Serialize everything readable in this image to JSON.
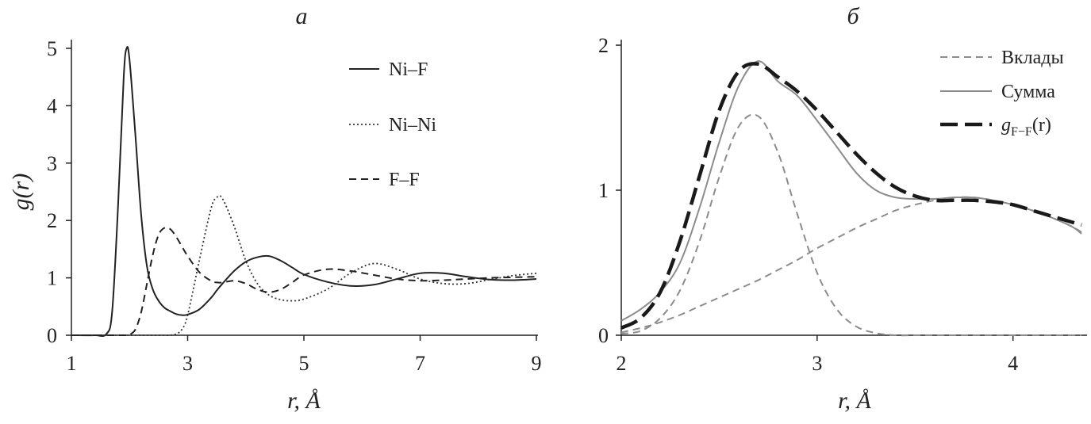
{
  "chart_data": [
    {
      "type": "line",
      "title": "а",
      "x_label": "r, Å",
      "y_label": "g(r)",
      "x": [
        1,
        1.4,
        1.6,
        1.7,
        1.8,
        1.9,
        1.95,
        2.0,
        2.1,
        2.2,
        2.3,
        2.4,
        2.5,
        2.6,
        2.7,
        2.8,
        2.9,
        3.0,
        3.2,
        3.4,
        3.5,
        3.6,
        3.8,
        4.0,
        4.2,
        4.4,
        4.6,
        4.8,
        5.0,
        5.4,
        5.8,
        6.2,
        6.6,
        7.0,
        7.4,
        7.8,
        8.2,
        8.6,
        9.0
      ],
      "series": [
        {
          "name": "Ni–F",
          "color": "#222222",
          "line_style": "solid",
          "values": [
            0,
            0,
            0.02,
            0.4,
            2.2,
            4.5,
            5.0,
            4.8,
            3.5,
            2.1,
            1.2,
            0.8,
            0.6,
            0.48,
            0.42,
            0.37,
            0.35,
            0.36,
            0.45,
            0.65,
            0.78,
            0.9,
            1.12,
            1.28,
            1.36,
            1.38,
            1.3,
            1.18,
            1.06,
            0.93,
            0.86,
            0.88,
            0.98,
            1.08,
            1.08,
            1.02,
            0.97,
            0.96,
            0.98
          ]
        },
        {
          "name": "Ni–Ni",
          "color": "#333333",
          "line_style": "dotted",
          "values": [
            0,
            0,
            0,
            0,
            0,
            0,
            0,
            0,
            0,
            0,
            0,
            0,
            0,
            0,
            0,
            0.02,
            0.1,
            0.35,
            1.3,
            2.2,
            2.4,
            2.38,
            1.9,
            1.3,
            0.9,
            0.7,
            0.62,
            0.6,
            0.63,
            0.8,
            1.08,
            1.25,
            1.15,
            0.98,
            0.9,
            0.9,
            0.97,
            1.04,
            1.08
          ]
        },
        {
          "name": "F–F",
          "color": "#222222",
          "line_style": "dashed",
          "values": [
            0,
            0,
            0,
            0,
            0,
            0,
            0,
            0.01,
            0.1,
            0.4,
            0.9,
            1.4,
            1.75,
            1.87,
            1.85,
            1.72,
            1.55,
            1.38,
            1.1,
            0.95,
            0.92,
            0.92,
            0.95,
            0.9,
            0.8,
            0.75,
            0.8,
            0.92,
            1.05,
            1.15,
            1.12,
            1.05,
            0.98,
            0.95,
            0.96,
            0.98,
            1.0,
            1.01,
            1.02
          ]
        }
      ],
      "xlim": [
        1,
        9
      ],
      "ylim": [
        0,
        5
      ],
      "xticks": [
        1,
        3,
        5,
        7,
        9
      ],
      "yticks": [
        0,
        1,
        2,
        3,
        4,
        5
      ],
      "grid": false
    },
    {
      "type": "line",
      "title": "б",
      "x_label": "r, Å",
      "x": [
        2.0,
        2.1,
        2.2,
        2.3,
        2.4,
        2.5,
        2.6,
        2.7,
        2.8,
        2.9,
        3.0,
        3.1,
        3.2,
        3.3,
        3.4,
        3.5,
        3.6,
        3.7,
        3.8,
        3.9,
        4.0,
        4.1,
        4.2,
        4.3,
        4.35
      ],
      "series": [
        {
          "name": "Вклады",
          "color": "#8c8c8c",
          "line_style": "dashed",
          "values": [
            0.01,
            0.03,
            0.12,
            0.31,
            0.65,
            1.09,
            1.44,
            1.51,
            1.26,
            0.83,
            0.43,
            0.18,
            0.06,
            0.015,
            0,
            0,
            0,
            0,
            0,
            0,
            0,
            0,
            0,
            0,
            0
          ]
        },
        {
          "color": "#8c8c8c",
          "line_style": "dashed",
          "values": [
            0.02,
            0.05,
            0.09,
            0.14,
            0.2,
            0.26,
            0.32,
            0.38,
            0.45,
            0.52,
            0.6,
            0.67,
            0.74,
            0.8,
            0.86,
            0.9,
            0.93,
            0.95,
            0.95,
            0.93,
            0.9,
            0.86,
            0.81,
            0.75,
            0.71
          ]
        },
        {
          "name": "Сумма",
          "color": "#8c8c8c",
          "line_style": "solid",
          "values": [
            0.1,
            0.18,
            0.3,
            0.5,
            0.88,
            1.33,
            1.72,
            1.89,
            1.75,
            1.65,
            1.48,
            1.3,
            1.12,
            1.0,
            0.95,
            0.94,
            0.94,
            0.95,
            0.95,
            0.93,
            0.9,
            0.86,
            0.81,
            0.75,
            0.7
          ]
        },
        {
          "name": {
            "base": "g",
            "sub": "F−F",
            "args": "(r)"
          },
          "color": "#1a1a1a",
          "line_style": "heavy-dashed",
          "values": [
            0.05,
            0.12,
            0.3,
            0.65,
            1.1,
            1.55,
            1.82,
            1.87,
            1.78,
            1.68,
            1.55,
            1.4,
            1.25,
            1.12,
            1.02,
            0.96,
            0.93,
            0.93,
            0.93,
            0.92,
            0.9,
            0.86,
            0.82,
            0.78,
            0.76
          ]
        }
      ],
      "xlim": [
        2,
        4.37
      ],
      "ylim": [
        0,
        2
      ],
      "xticks": [
        2,
        3,
        4
      ],
      "yticks": [
        0,
        1,
        2
      ],
      "grid": false
    }
  ]
}
